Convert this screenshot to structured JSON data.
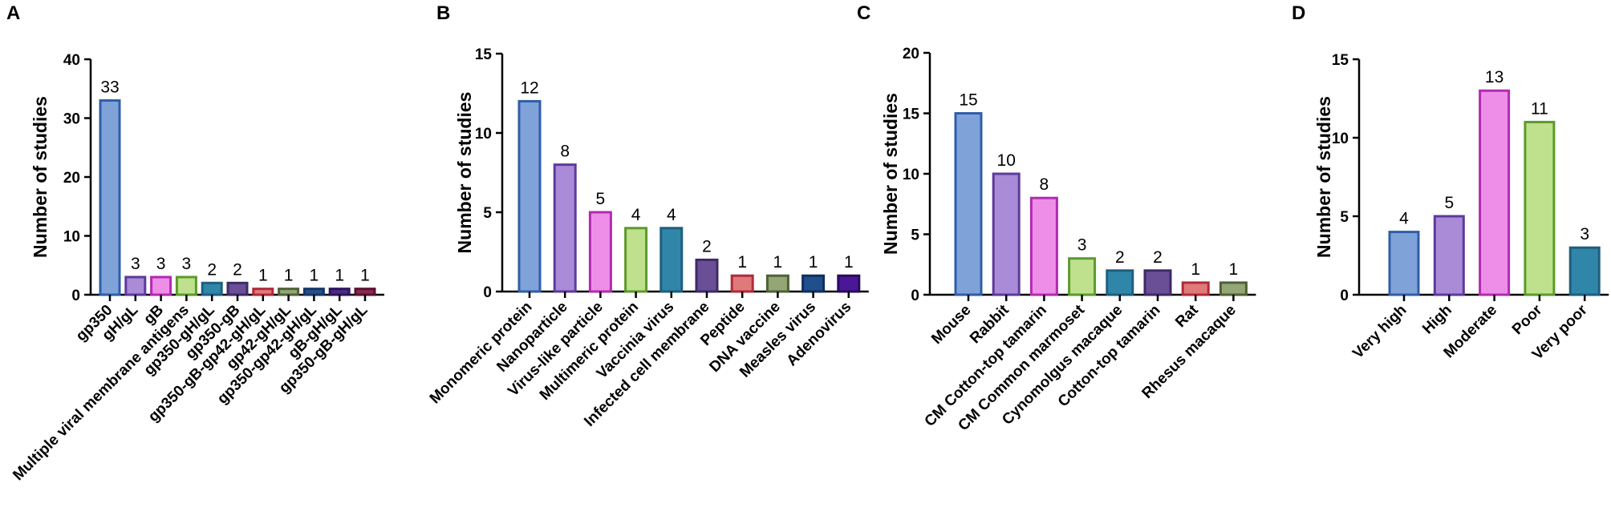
{
  "chart_data": [
    {
      "panel": "A",
      "type": "bar",
      "ylabel": "Number of studies",
      "xlabel": "",
      "ylim": [
        0,
        40
      ],
      "yticks": [
        0,
        10,
        20,
        30,
        40
      ],
      "categories": [
        "gp350",
        "gH/gL",
        "gB",
        "Multiple viral membrane antigens",
        "gp350-gH/gL",
        "gp350-gB",
        "gp350-gB-gp42-gH/gL",
        "gp42-gH/gL",
        "gp350-gp42-gH/gL",
        "gB-gH/gL",
        "gp350-gB-gH/gL"
      ],
      "values": [
        33,
        3,
        3,
        3,
        2,
        2,
        1,
        1,
        1,
        1,
        1
      ],
      "fills": [
        "#7fa3d9",
        "#a98bd8",
        "#ee8ee8",
        "#bfe08c",
        "#2f86a8",
        "#6a4f96",
        "#e07a7a",
        "#94a576",
        "#2a4f86",
        "#4b2b86",
        "#8a2a4f"
      ],
      "strokes": [
        "#2f5ea8",
        "#5d3a9b",
        "#b22bb0",
        "#5b9a2b",
        "#1e5f7d",
        "#3d2a66",
        "#b02a3a",
        "#4e6136",
        "#163768",
        "#2c175a",
        "#5a1232"
      ]
    },
    {
      "panel": "B",
      "type": "bar",
      "ylabel": "Number of studies",
      "xlabel": "",
      "ylim": [
        0,
        15
      ],
      "yticks": [
        0,
        5,
        10,
        15
      ],
      "categories": [
        "Monomeric protein",
        "Nanoparticle",
        "Virus-like particle",
        "Multimeric protein",
        "Vaccinia virus",
        "Infected cell membrane",
        "Peptide",
        "DNA vaccine",
        "Measles virus",
        "Adenovirus"
      ],
      "values": [
        12,
        8,
        5,
        4,
        4,
        2,
        1,
        1,
        1,
        1
      ],
      "fills": [
        "#7fa3d9",
        "#a98bd8",
        "#ee8ee8",
        "#bfe08c",
        "#2f86a8",
        "#6a4f96",
        "#e07a7a",
        "#94a576",
        "#1f4f8c",
        "#4a1896"
      ],
      "strokes": [
        "#2f5ea8",
        "#5d3a9b",
        "#b22bb0",
        "#5b9a2b",
        "#1e5f7d",
        "#3d2a66",
        "#b02a3a",
        "#4e6136",
        "#0f2f5e",
        "#2a0b5e"
      ]
    },
    {
      "panel": "C",
      "type": "bar",
      "ylabel": "Number of studies",
      "xlabel": "",
      "ylim": [
        0,
        20
      ],
      "yticks": [
        0,
        5,
        10,
        15,
        20
      ],
      "categories": [
        "Mouse",
        "Rabbit",
        "CM Cotton-top tamarin",
        "CM Common marmoset",
        "Cynomolgus macaque",
        "Cotton-top tamarin",
        "Rat",
        "Rhesus macaque"
      ],
      "values": [
        15,
        10,
        8,
        3,
        2,
        2,
        1,
        1
      ],
      "fills": [
        "#7fa3d9",
        "#a98bd8",
        "#ee8ee8",
        "#bfe08c",
        "#2f86a8",
        "#6a4f96",
        "#e07a7a",
        "#94a576"
      ],
      "strokes": [
        "#2f5ea8",
        "#5d3a9b",
        "#b22bb0",
        "#5b9a2b",
        "#1e5f7d",
        "#3d2a66",
        "#b02a3a",
        "#4e6136"
      ]
    },
    {
      "panel": "D",
      "type": "bar",
      "ylabel": "Number of studies",
      "xlabel": "",
      "ylim": [
        0,
        15
      ],
      "yticks": [
        0,
        5,
        10,
        15
      ],
      "categories": [
        "Very high",
        "High",
        "Moderate",
        "Poor",
        "Very poor"
      ],
      "values": [
        4,
        5,
        13,
        11,
        3
      ],
      "fills": [
        "#7fa3d9",
        "#a98bd8",
        "#ee8ee8",
        "#bfe08c",
        "#2f86a8"
      ],
      "strokes": [
        "#2f5ea8",
        "#5d3a9b",
        "#b22bb0",
        "#5b9a2b",
        "#1e5f7d"
      ]
    }
  ]
}
